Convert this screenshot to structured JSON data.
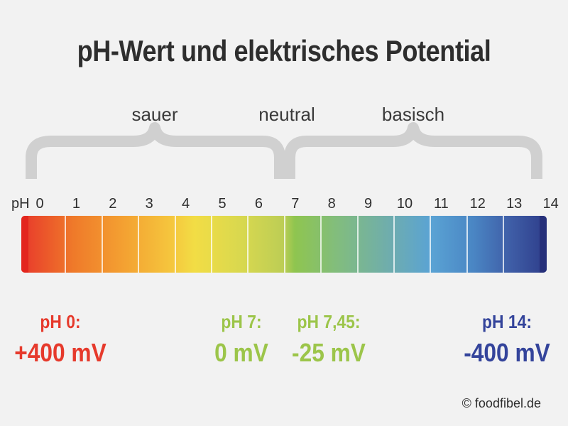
{
  "title": "pH-Wert und elektrisches Potential",
  "zones": [
    "sauer",
    "neutral",
    "basisch"
  ],
  "scale": {
    "prefix": "pH",
    "ticks": [
      "0",
      "1",
      "2",
      "3",
      "4",
      "5",
      "6",
      "7",
      "8",
      "9",
      "10",
      "11",
      "12",
      "13",
      "14"
    ]
  },
  "colors": {
    "acid": "#e63a2c",
    "neutral": "#9cc54a",
    "base": "#34449b"
  },
  "markers": [
    {
      "ph_label": "pH 0:",
      "mv_label": "+400 mV",
      "color": "red"
    },
    {
      "ph_label": "pH 7:",
      "mv_label": "0 mV",
      "color": "green"
    },
    {
      "ph_label": "pH 7,45:",
      "mv_label": "-25 mV",
      "color": "green"
    },
    {
      "ph_label": "pH 14:",
      "mv_label": "-400 mV",
      "color": "blue"
    }
  ],
  "credit": "© foodfibel.de"
}
